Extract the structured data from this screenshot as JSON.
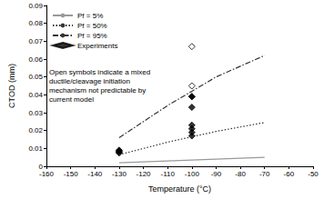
{
  "chart_data": {
    "type": "line",
    "x_label": "Temperature (°C)",
    "y_label": "CTOD (mm)",
    "annotation": "Open symbols indicate a mixed ductile/cleavage initiation mechanism not predictable by current model",
    "xlim": [
      -160,
      -50
    ],
    "xticks": [
      -160,
      -150,
      -140,
      -130,
      -120,
      -110,
      -100,
      -90,
      -80,
      -70,
      -60,
      -50
    ],
    "ylim": [
      0,
      0.09
    ],
    "yticks": [
      0,
      0.01,
      0.02,
      0.03,
      0.04,
      0.05,
      0.06,
      0.07,
      0.08,
      0.09
    ],
    "grid": false,
    "legend": "upper left",
    "series": [
      {
        "name": "Pf = 5%",
        "type": "line",
        "color": "#999999",
        "line_style": "solid",
        "x": [
          -130,
          -120,
          -110,
          -100,
          -90,
          -80,
          -70
        ],
        "values": [
          0.002,
          0.0025,
          0.003,
          0.0035,
          0.004,
          0.0045,
          0.005
        ]
      },
      {
        "name": "Pf = 50%",
        "type": "line",
        "color": "#333333",
        "line_style": "dotted",
        "x": [
          -130,
          -120,
          -110,
          -100,
          -90,
          -80,
          -70
        ],
        "values": [
          0.0065,
          0.01,
          0.0135,
          0.0165,
          0.0195,
          0.022,
          0.0245
        ]
      },
      {
        "name": "Pf = 95%",
        "type": "line",
        "color": "#333333",
        "line_style": "dashdot",
        "x": [
          -130,
          -120,
          -110,
          -100,
          -90,
          -80,
          -70
        ],
        "values": [
          0.016,
          0.025,
          0.034,
          0.042,
          0.05,
          0.056,
          0.062
        ]
      },
      {
        "name": "Experiments",
        "type": "scatter",
        "color": "#000000",
        "marker": "diamond",
        "x": [
          -130,
          -130,
          -130,
          -130,
          -100,
          -100,
          -100,
          -100,
          -100,
          -100,
          -100,
          -100,
          -100
        ],
        "values": [
          0.0075,
          0.008,
          0.0085,
          0.009,
          0.067,
          0.045,
          0.039,
          0.033,
          0.023,
          0.021,
          0.019,
          0.017,
          0.039
        ],
        "colors": [
          "#000000",
          "#000000",
          "#000000",
          "#000000",
          "#ffffff",
          "#ffffff",
          "#000000",
          "#000000",
          "#000000",
          "#000000",
          "#000000",
          "#000000",
          "#000000"
        ]
      }
    ]
  }
}
